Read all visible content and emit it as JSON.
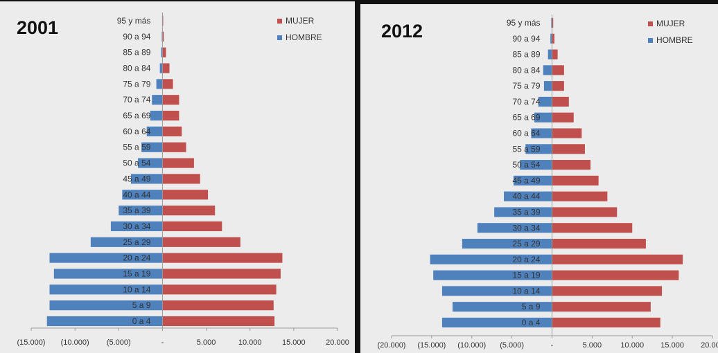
{
  "chart_data": [
    {
      "type": "bar",
      "orientation": "horizontal",
      "title": "2001",
      "categories": [
        "0 a 4",
        "5 a 9",
        "10 a 14",
        "15 a 19",
        "20 a 24",
        "25 a 29",
        "30 a 34",
        "35 a 39",
        "40 a 44",
        "45 a 49",
        "50 a 54",
        "55 a 59",
        "60 a 64",
        "65 a 69",
        "70 a 74",
        "75 a 79",
        "80 a 84",
        "85 a 89",
        "90 a 94",
        "95 y más"
      ],
      "series": [
        {
          "name": "MUJER",
          "color": "#c0504d",
          "values": [
            12800,
            12700,
            13000,
            13500,
            13700,
            8900,
            6800,
            6000,
            5200,
            4300,
            3600,
            2700,
            2200,
            1900,
            1900,
            1200,
            800,
            400,
            150,
            80
          ]
        },
        {
          "name": "HOMBRE",
          "color": "#4f81bd",
          "values": [
            -13200,
            -12900,
            -12900,
            -12400,
            -12900,
            -8200,
            -5900,
            -5000,
            -4600,
            -3600,
            -2800,
            -2400,
            -1800,
            -1400,
            -1200,
            -700,
            -300,
            -150,
            -80,
            -40
          ]
        }
      ],
      "xlim": [
        -15000,
        20000
      ],
      "xticks": [
        "(15.000)",
        "(10.000)",
        "(5.000)",
        "-",
        "5.000",
        "10.000",
        "15.000",
        "20.000"
      ],
      "legend_position": "top-right",
      "grid": false
    },
    {
      "type": "bar",
      "orientation": "horizontal",
      "title": "2012",
      "categories": [
        "0 a 4",
        "5 a 9",
        "10 a 14",
        "15 a 19",
        "20 a 24",
        "25 a 29",
        "30 a 34",
        "35 a 39",
        "40 a 44",
        "45 a 49",
        "50 a 54",
        "55 a 59",
        "60 a 64",
        "65 a 69",
        "70 a 74",
        "75 a 79",
        "80 a 84",
        "85 a 89",
        "90 a 94",
        "95 y más"
      ],
      "series": [
        {
          "name": "MUJER",
          "color": "#c0504d",
          "values": [
            13500,
            12300,
            13700,
            15800,
            16300,
            11700,
            10000,
            8100,
            6900,
            5800,
            4800,
            4100,
            3700,
            2700,
            2100,
            1500,
            1500,
            700,
            300,
            150
          ]
        },
        {
          "name": "HOMBRE",
          "color": "#4f81bd",
          "values": [
            -13700,
            -12400,
            -13700,
            -14800,
            -15200,
            -11200,
            -9300,
            -7200,
            -6000,
            -4800,
            -4000,
            -3300,
            -2600,
            -2200,
            -1700,
            -1000,
            -1100,
            -500,
            -200,
            -100
          ]
        }
      ],
      "xlim": [
        -20000,
        20000
      ],
      "xticks": [
        "(20.000)",
        "(15.000)",
        "(10.000)",
        "(5.000)",
        "-",
        "5.000",
        "10.000",
        "15.000",
        "20.000"
      ],
      "legend_position": "top-right",
      "grid": false
    }
  ]
}
